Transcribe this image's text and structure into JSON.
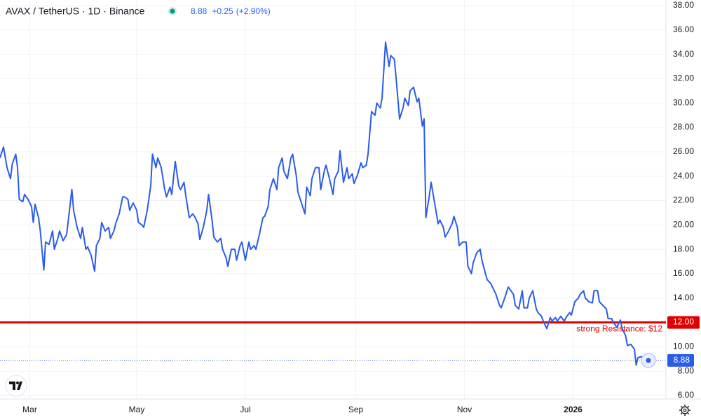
{
  "chart_data": {
    "type": "line",
    "title": "AVAX / TetherUS · 1D · Binance",
    "last_price": 8.88,
    "change": "+0.25",
    "change_pct": "(+2.90%)",
    "color": "#2a5ce8",
    "x": [
      0,
      2,
      4,
      6,
      7,
      9,
      10,
      11,
      13,
      14,
      16,
      18,
      19,
      20,
      22,
      23,
      25,
      26,
      28,
      30,
      31,
      33,
      34,
      36,
      38,
      39,
      41,
      42,
      44,
      46,
      47,
      49,
      50,
      52,
      54,
      55,
      57,
      58,
      60,
      62,
      63,
      65,
      66,
      68,
      70,
      71,
      73,
      74,
      76,
      78,
      79,
      81,
      82,
      84,
      86,
      87,
      89,
      90,
      92,
      94,
      95,
      97,
      98,
      100,
      102,
      103,
      105,
      106,
      108,
      110,
      111,
      113,
      114,
      116,
      118,
      119,
      121,
      122,
      124,
      126,
      127,
      129,
      130,
      132,
      134,
      135,
      137,
      138,
      140,
      142,
      143,
      145,
      146,
      148,
      150,
      151,
      153,
      154,
      156,
      158,
      159,
      161,
      162,
      164,
      166,
      167,
      169,
      170,
      172,
      174,
      175,
      177,
      178,
      180,
      182,
      183,
      185,
      186,
      188,
      190,
      191,
      193,
      194,
      196,
      198,
      199,
      201,
      202,
      204,
      206,
      207,
      209,
      210,
      212,
      214,
      215,
      217,
      218,
      220,
      222,
      223,
      225,
      226,
      228,
      230,
      231,
      233,
      234,
      236,
      238,
      239,
      241,
      242,
      243,
      245,
      246,
      248,
      250,
      251,
      253,
      254,
      256,
      258,
      259,
      261,
      262,
      264,
      266,
      267,
      269,
      270,
      272,
      274,
      275,
      277,
      278,
      280,
      282,
      283,
      285,
      286,
      288,
      290,
      291,
      293,
      294,
      296,
      298,
      299,
      301,
      302,
      304,
      306,
      307,
      309,
      310,
      312,
      314,
      315,
      317,
      318,
      320,
      322,
      323,
      325,
      326,
      328,
      330,
      331,
      333,
      334,
      336,
      338,
      339,
      341,
      342,
      344,
      346,
      347,
      349,
      350,
      352,
      354,
      355,
      357,
      358,
      360,
      362,
      363,
      364,
      366,
      367,
      369,
      370
    ],
    "values": [
      25.5,
      26.4,
      24.7,
      23.8,
      25.0,
      25.8,
      24.7,
      22.1,
      21.9,
      22.5,
      22.1,
      21.5,
      20.2,
      21.7,
      20.6,
      19.5,
      16.3,
      18.6,
      18.4,
      19.5,
      18.0,
      18.9,
      19.5,
      18.7,
      19.2,
      20.4,
      22.9,
      21.2,
      19.8,
      18.9,
      19.8,
      18.0,
      18.2,
      17.5,
      16.2,
      18.3,
      18.9,
      20.2,
      19.5,
      19.8,
      18.9,
      19.5,
      20.1,
      20.9,
      22.3,
      22.3,
      22.1,
      21.2,
      21.8,
      21.2,
      20.2,
      20.0,
      19.8,
      21.2,
      23.2,
      25.8,
      24.7,
      25.5,
      24.7,
      22.9,
      22.3,
      23.1,
      22.5,
      25.2,
      23.2,
      22.9,
      23.5,
      22.4,
      20.6,
      20.9,
      20.7,
      20.1,
      18.8,
      19.8,
      21.2,
      22.5,
      20.4,
      19.0,
      18.6,
      18.9,
      18.0,
      17.3,
      16.6,
      18.0,
      18.0,
      17.1,
      18.3,
      18.6,
      17.1,
      18.6,
      18.0,
      18.3,
      18.0,
      19.2,
      20.6,
      20.7,
      21.5,
      22.9,
      23.8,
      22.9,
      24.7,
      25.5,
      24.4,
      23.8,
      25.5,
      25.8,
      24.1,
      22.7,
      21.8,
      20.9,
      23.1,
      22.4,
      23.8,
      24.7,
      24.7,
      22.9,
      24.4,
      24.9,
      23.8,
      22.5,
      23.8,
      24.4,
      26.1,
      23.5,
      24.7,
      23.8,
      24.2,
      23.4,
      24.1,
      25.1,
      24.7,
      24.9,
      25.8,
      29.3,
      29.0,
      30.0,
      29.6,
      30.4,
      35.0,
      33.0,
      33.9,
      33.6,
      32.1,
      28.7,
      29.6,
      30.4,
      29.8,
      31.0,
      31.3,
      30.1,
      30.4,
      28.1,
      28.7,
      20.6,
      22.4,
      23.5,
      21.8,
      20.1,
      20.4,
      19.8,
      19.0,
      19.5,
      20.1,
      20.7,
      19.8,
      18.3,
      18.6,
      18.6,
      16.6,
      16.0,
      16.9,
      17.7,
      18.0,
      17.1,
      16.0,
      15.5,
      15.2,
      14.6,
      14.3,
      13.4,
      13.2,
      14.0,
      14.9,
      14.7,
      14.3,
      13.4,
      13.1,
      14.6,
      13.2,
      13.2,
      14.0,
      14.6,
      13.1,
      12.8,
      12.5,
      12.1,
      11.5,
      12.4,
      12.1,
      12.4,
      12.1,
      12.5,
      12.1,
      12.4,
      12.8,
      12.6,
      13.7,
      14.0,
      14.3,
      14.6,
      14.0,
      13.7,
      13.6,
      14.6,
      14.6,
      13.7,
      13.4,
      13.1,
      12.3,
      12.3,
      12.0,
      11.6,
      12.2,
      11.5,
      10.9,
      10.1,
      10.2,
      9.8,
      8.5,
      9.1,
      9.2,
      8.9,
      8.9,
      8.88
    ],
    "xlim": [
      0,
      380
    ],
    "xticks": [
      {
        "value": 17,
        "label": "Mar"
      },
      {
        "value": 78,
        "label": "May"
      },
      {
        "value": 140,
        "label": "Jul"
      },
      {
        "value": 203,
        "label": "Sep"
      },
      {
        "value": 265,
        "label": "Nov"
      },
      {
        "value": 327,
        "label": "2026"
      }
    ],
    "ylim": [
      6,
      38
    ],
    "yticks": [
      {
        "value": 6,
        "label": "6.00"
      },
      {
        "value": 8,
        "label": "8.00"
      },
      {
        "value": 10,
        "label": "10.00"
      },
      {
        "value": 12,
        "label": "12.00"
      },
      {
        "value": 14,
        "label": "14.00"
      },
      {
        "value": 16,
        "label": "16.00"
      },
      {
        "value": 18,
        "label": "18.00"
      },
      {
        "value": 20,
        "label": "20.00"
      },
      {
        "value": 22,
        "label": "22.00"
      },
      {
        "value": 24,
        "label": "24.00"
      },
      {
        "value": 26,
        "label": "26.00"
      },
      {
        "value": 28,
        "label": "28.00"
      },
      {
        "value": 30,
        "label": "30.00"
      },
      {
        "value": 32,
        "label": "32.00"
      },
      {
        "value": 34,
        "label": "34.00"
      },
      {
        "value": 36,
        "label": "36.00"
      },
      {
        "value": 38,
        "label": "38.00"
      }
    ],
    "grid": true,
    "resistance": {
      "value": 12,
      "label": "12.00",
      "annotation": "strong Resistance: $12",
      "color": "#e00000"
    }
  }
}
